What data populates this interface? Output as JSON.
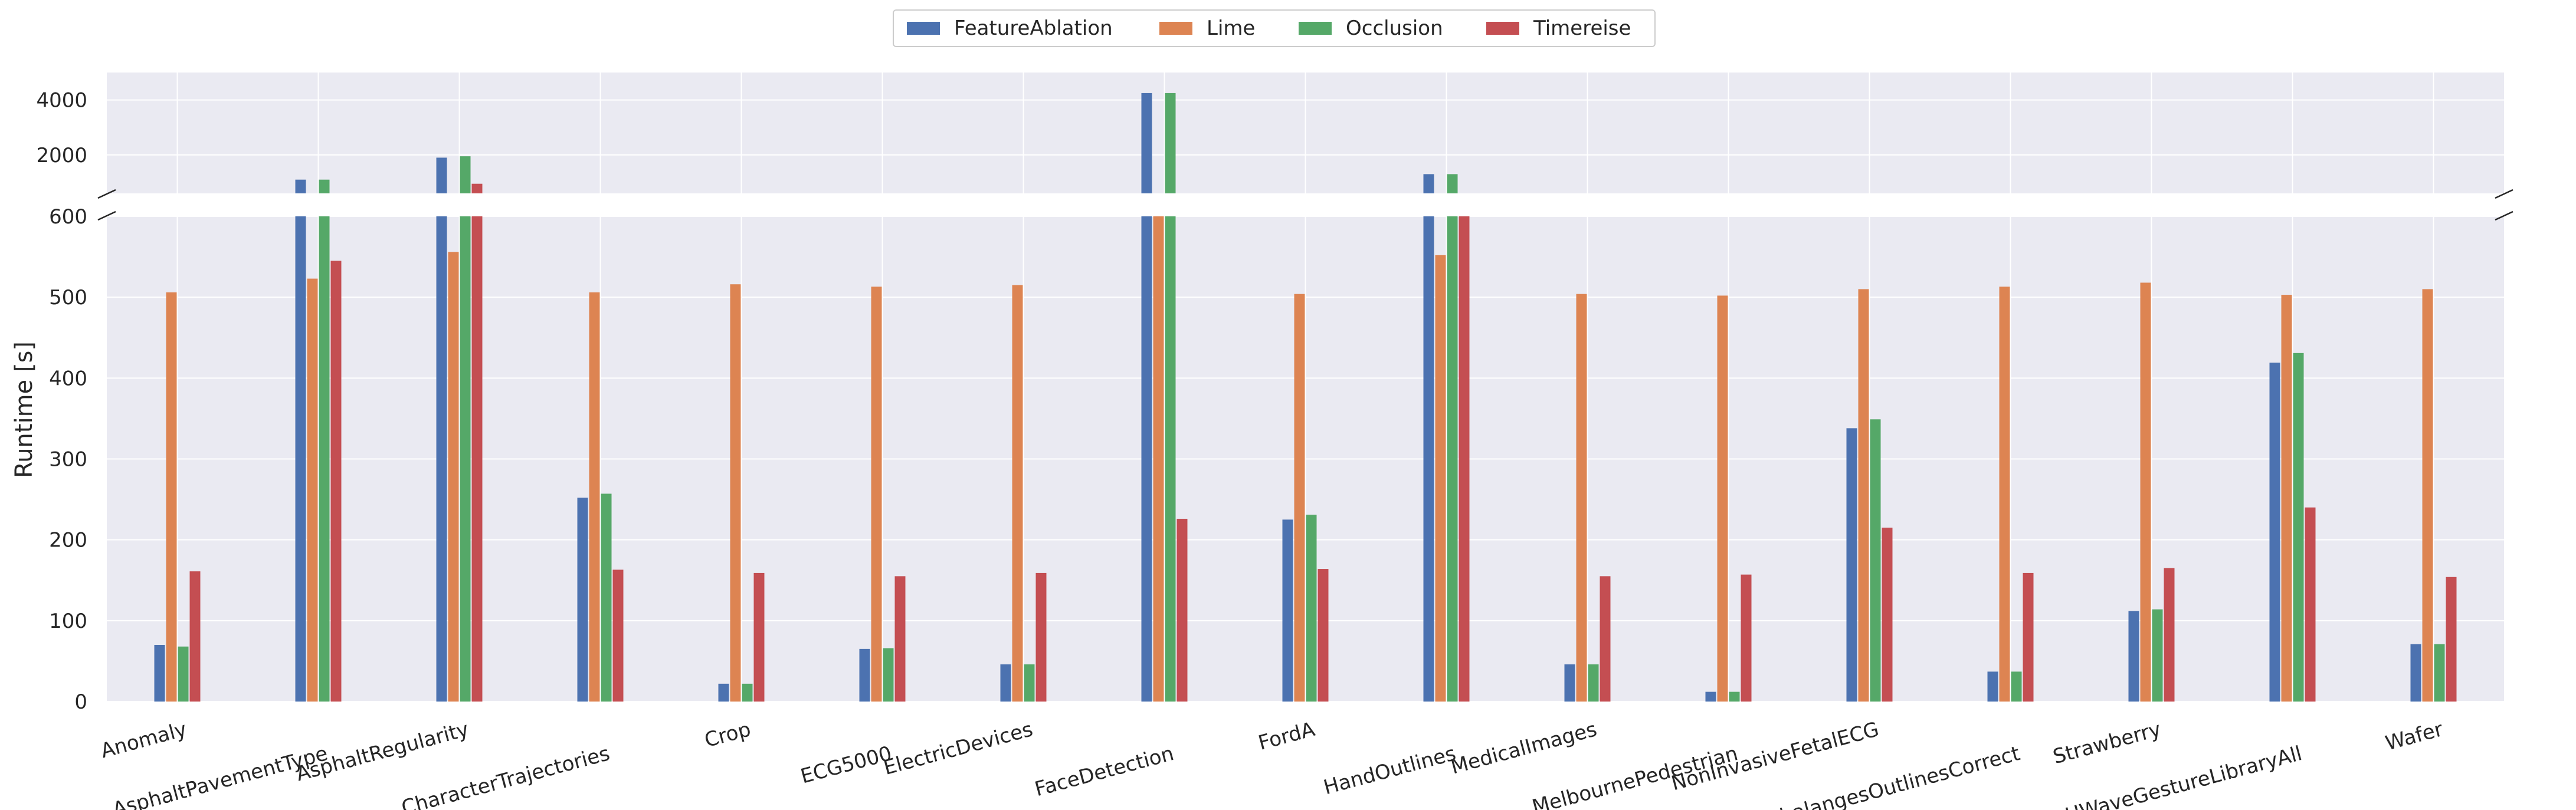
{
  "chart_data": {
    "type": "bar",
    "title": "",
    "xlabel": "",
    "ylabel": "Runtime [s]",
    "axis": "broken",
    "lower_ylim": [
      0,
      600
    ],
    "upper_ylim": [
      600,
      5000
    ],
    "lower_ticks": [
      0,
      100,
      200,
      300,
      400,
      500,
      600
    ],
    "upper_ticks": [
      2000,
      4000
    ],
    "grid": true,
    "legend_position": "top-center",
    "categories": [
      "Anomaly",
      "AsphaltPavementType",
      "AsphaltRegularity",
      "CharacterTrajectories",
      "Crop",
      "ECG5000",
      "ElectricDevices",
      "FaceDetection",
      "FordA",
      "HandOutlines",
      "MedicalImages",
      "MelbournePedestrian",
      "NonInvasiveFetalECG",
      "PhalangesOutlinesCorrect",
      "Strawberry",
      "UWaveGestureLibraryAll",
      "Wafer"
    ],
    "series": [
      {
        "name": "FeatureAblation",
        "color": "#4c72b0",
        "values": [
          70,
          1100,
          1900,
          252,
          22,
          65,
          46,
          4250,
          225,
          1300,
          46,
          12,
          338,
          37,
          112,
          419,
          71
        ]
      },
      {
        "name": "Lime",
        "color": "#dd8452",
        "values": [
          506,
          523,
          556,
          506,
          516,
          513,
          515,
          600,
          504,
          552,
          504,
          502,
          510,
          513,
          518,
          503,
          510
        ]
      },
      {
        "name": "Occlusion",
        "color": "#55a868",
        "values": [
          68,
          1100,
          1950,
          257,
          22,
          66,
          46,
          4250,
          231,
          1300,
          46,
          12,
          349,
          37,
          114,
          431,
          71
        ]
      },
      {
        "name": "Timereise",
        "color": "#c44e52",
        "values": [
          161,
          545,
          950,
          163,
          159,
          155,
          159,
          226,
          164,
          600,
          155,
          157,
          215,
          159,
          165,
          240,
          154
        ]
      }
    ]
  }
}
